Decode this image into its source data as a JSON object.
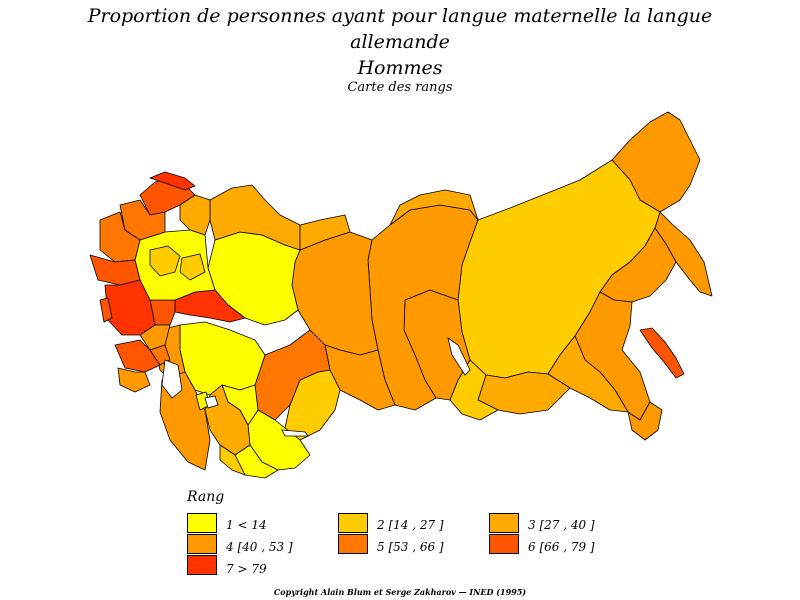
{
  "title": {
    "line1": "Proportion de personnes ayant pour langue maternelle la langue",
    "line2": "allemande",
    "line3": "Hommes",
    "subtitle": "Carte des rangs"
  },
  "legend": {
    "title": "Rang",
    "items": [
      {
        "label": "1  <  14",
        "color": "#ffff00"
      },
      {
        "label": "2  [14  ,  27  ]",
        "color": "#ffcc00"
      },
      {
        "label": "3  [27  ,  40  ]",
        "color": "#ffaa00"
      },
      {
        "label": "4  [40  ,  53  ]",
        "color": "#ff9900"
      },
      {
        "label": "5  [53  ,  66  ]",
        "color": "#ff7700"
      },
      {
        "label": "6  [66  ,  79  ]",
        "color": "#ff5500"
      },
      {
        "label": "7  >  79",
        "color": "#ff3300"
      }
    ]
  },
  "copyright": "Copyright Alain Blum et Serge Zakharov  —  INED (1995)"
}
